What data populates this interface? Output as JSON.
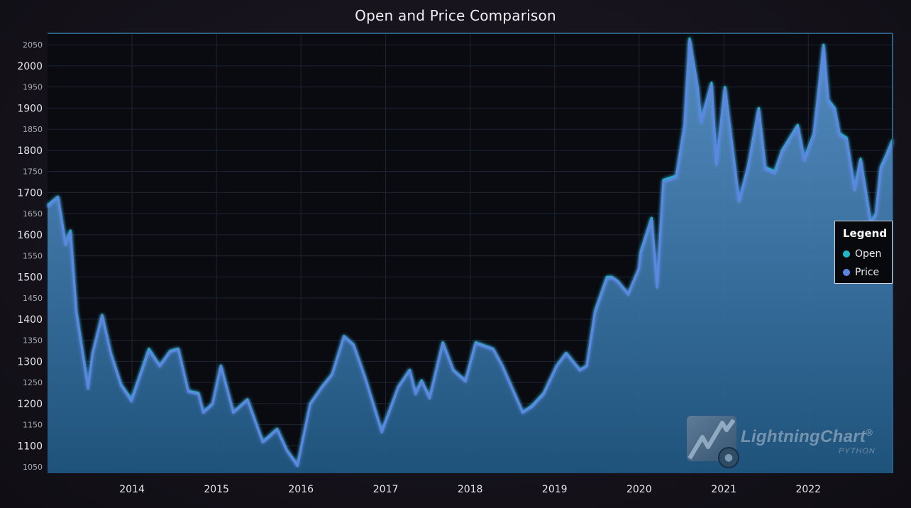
{
  "chart_data": {
    "type": "area",
    "title": "Open and Price Comparison",
    "xlabel": "",
    "ylabel": "",
    "xlim": [
      "2013-01-01",
      "2022-12-31"
    ],
    "ylim": [
      1035,
      2077
    ],
    "x_ticks": [
      "2014",
      "2015",
      "2016",
      "2017",
      "2018",
      "2019",
      "2020",
      "2021",
      "2022"
    ],
    "y_ticks": [
      1050,
      1100,
      1150,
      1200,
      1250,
      1300,
      1350,
      1400,
      1450,
      1500,
      1550,
      1600,
      1650,
      1700,
      1750,
      1800,
      1850,
      1900,
      1950,
      2000,
      2050
    ],
    "grid": true,
    "legend": {
      "title": "Legend",
      "placement": "right",
      "entries": [
        {
          "name": "Open",
          "color": "#22b6c8"
        },
        {
          "name": "Price",
          "color": "#5b86e0"
        }
      ]
    },
    "series": [
      {
        "name": "Open",
        "color": "#22b6c8",
        "x": [
          "2013-01-01",
          "2013-02-15",
          "2013-03-20",
          "2013-04-10",
          "2013-05-05",
          "2013-06-25",
          "2013-07-15",
          "2013-08-25",
          "2013-10-01",
          "2013-11-15",
          "2013-12-30",
          "2014-03-15",
          "2014-05-01",
          "2014-06-15",
          "2014-07-20",
          "2014-09-01",
          "2014-10-15",
          "2014-11-05",
          "2014-12-15",
          "2015-01-20",
          "2015-03-15",
          "2015-05-15",
          "2015-07-20",
          "2015-08-20",
          "2015-09-20",
          "2015-11-01",
          "2015-12-17",
          "2016-02-10",
          "2016-04-01",
          "2016-05-15",
          "2016-07-05",
          "2016-08-15",
          "2016-10-05",
          "2016-12-15",
          "2017-02-25",
          "2017-04-15",
          "2017-05-10",
          "2017-06-05",
          "2017-07-10",
          "2017-09-05",
          "2017-10-20",
          "2017-12-12",
          "2018-01-25",
          "2018-04-10",
          "2018-05-20",
          "2018-08-16",
          "2018-09-25",
          "2018-11-15",
          "2019-01-10",
          "2019-02-20",
          "2019-04-20",
          "2019-05-20",
          "2019-06-25",
          "2019-08-15",
          "2019-09-05",
          "2019-10-01",
          "2019-11-15",
          "2019-12-31",
          "2020-01-08",
          "2020-02-24",
          "2020-03-19",
          "2020-04-15",
          "2020-06-10",
          "2020-07-15",
          "2020-08-06",
          "2020-09-10",
          "2020-09-25",
          "2020-11-09",
          "2020-11-30",
          "2021-01-06",
          "2021-03-08",
          "2021-04-15",
          "2021-06-01",
          "2021-06-29",
          "2021-08-09",
          "2021-09-10",
          "2021-11-16",
          "2021-12-15",
          "2022-01-25",
          "2022-03-08",
          "2022-03-28",
          "2022-04-25",
          "2022-05-16",
          "2022-06-15",
          "2022-07-20",
          "2022-08-15",
          "2022-09-28",
          "2022-10-20",
          "2022-11-10",
          "2022-12-05",
          "2022-12-31"
        ],
        "values": [
          1670,
          1690,
          1580,
          1610,
          1420,
          1240,
          1320,
          1410,
          1320,
          1245,
          1210,
          1330,
          1290,
          1325,
          1330,
          1230,
          1225,
          1180,
          1200,
          1290,
          1180,
          1210,
          1110,
          1125,
          1140,
          1090,
          1055,
          1200,
          1240,
          1270,
          1360,
          1340,
          1260,
          1135,
          1240,
          1280,
          1225,
          1255,
          1215,
          1345,
          1280,
          1255,
          1345,
          1330,
          1290,
          1180,
          1195,
          1225,
          1290,
          1320,
          1280,
          1290,
          1420,
          1500,
          1500,
          1490,
          1460,
          1520,
          1560,
          1640,
          1480,
          1730,
          1740,
          1860,
          2065,
          1950,
          1870,
          1960,
          1770,
          1950,
          1680,
          1760,
          1900,
          1760,
          1750,
          1800,
          1860,
          1780,
          1840,
          2050,
          1920,
          1900,
          1840,
          1830,
          1710,
          1780,
          1630,
          1650,
          1760,
          1790,
          1825
        ]
      },
      {
        "name": "Price",
        "color": "#5b86e0",
        "x": [
          "2013-01-01",
          "2013-02-15",
          "2013-03-20",
          "2013-04-10",
          "2013-05-05",
          "2013-06-25",
          "2013-07-15",
          "2013-08-25",
          "2013-10-01",
          "2013-11-15",
          "2013-12-30",
          "2014-03-15",
          "2014-05-01",
          "2014-06-15",
          "2014-07-20",
          "2014-09-01",
          "2014-10-15",
          "2014-11-05",
          "2014-12-15",
          "2015-01-20",
          "2015-03-15",
          "2015-05-15",
          "2015-07-20",
          "2015-08-20",
          "2015-09-20",
          "2015-11-01",
          "2015-12-17",
          "2016-02-10",
          "2016-04-01",
          "2016-05-15",
          "2016-07-05",
          "2016-08-15",
          "2016-10-05",
          "2016-12-15",
          "2017-02-25",
          "2017-04-15",
          "2017-05-10",
          "2017-06-05",
          "2017-07-10",
          "2017-09-05",
          "2017-10-20",
          "2017-12-12",
          "2018-01-25",
          "2018-04-10",
          "2018-05-20",
          "2018-08-16",
          "2018-09-25",
          "2018-11-15",
          "2019-01-10",
          "2019-02-20",
          "2019-04-20",
          "2019-05-20",
          "2019-06-25",
          "2019-08-15",
          "2019-09-05",
          "2019-10-01",
          "2019-11-15",
          "2019-12-31",
          "2020-01-08",
          "2020-02-24",
          "2020-03-19",
          "2020-04-15",
          "2020-06-10",
          "2020-07-15",
          "2020-08-06",
          "2020-09-10",
          "2020-09-25",
          "2020-11-09",
          "2020-11-30",
          "2021-01-06",
          "2021-03-08",
          "2021-04-15",
          "2021-06-01",
          "2021-06-29",
          "2021-08-09",
          "2021-09-10",
          "2021-11-16",
          "2021-12-15",
          "2022-01-25",
          "2022-03-08",
          "2022-03-28",
          "2022-04-25",
          "2022-05-16",
          "2022-06-15",
          "2022-07-20",
          "2022-08-15",
          "2022-09-28",
          "2022-10-20",
          "2022-11-10",
          "2022-12-05",
          "2022-12-31"
        ],
        "values": [
          1665,
          1688,
          1575,
          1605,
          1415,
          1235,
          1318,
          1408,
          1318,
          1242,
          1205,
          1325,
          1288,
          1322,
          1328,
          1228,
          1222,
          1178,
          1198,
          1288,
          1178,
          1208,
          1108,
          1122,
          1138,
          1088,
          1052,
          1198,
          1238,
          1268,
          1358,
          1338,
          1258,
          1132,
          1238,
          1278,
          1222,
          1252,
          1212,
          1342,
          1278,
          1252,
          1342,
          1328,
          1288,
          1178,
          1192,
          1222,
          1288,
          1318,
          1278,
          1288,
          1415,
          1495,
          1498,
          1488,
          1458,
          1518,
          1555,
          1635,
          1475,
          1725,
          1735,
          1855,
          2060,
          1945,
          1865,
          1955,
          1765,
          1945,
          1678,
          1755,
          1895,
          1755,
          1745,
          1795,
          1855,
          1775,
          1835,
          2045,
          1915,
          1895,
          1835,
          1825,
          1705,
          1775,
          1625,
          1645,
          1755,
          1785,
          1820
        ]
      }
    ]
  },
  "watermark": {
    "brand": "LightningChart",
    "registered": "®",
    "sub": "PYTHON"
  }
}
